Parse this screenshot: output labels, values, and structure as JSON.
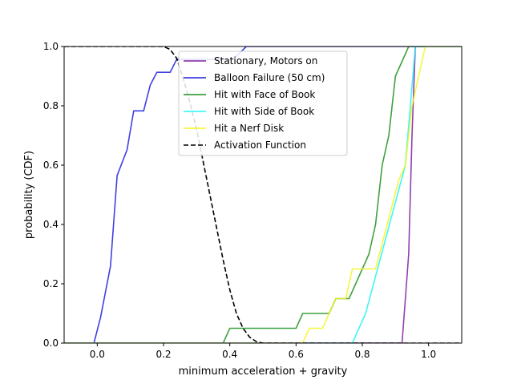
{
  "chart_data": {
    "type": "line",
    "title": "",
    "xlabel": "minimum acceleration + gravity",
    "ylabel": "probability (CDF)",
    "xlim": [
      -0.1,
      1.1
    ],
    "ylim": [
      0.0,
      1.0
    ],
    "xticks": [
      0.0,
      0.2,
      0.4,
      0.6,
      0.8,
      1.0
    ],
    "yticks": [
      0.0,
      0.2,
      0.4,
      0.6,
      0.8,
      1.0
    ],
    "grid": false,
    "legend_position": "upper-center",
    "series": [
      {
        "name": "Stationary, Motors on",
        "color": "#7f1f9f",
        "dash": "solid",
        "x": [
          -0.1,
          0.92,
          0.94,
          0.95,
          0.96,
          1.1
        ],
        "y": [
          0.0,
          0.0,
          0.3,
          0.7,
          1.0,
          1.0
        ]
      },
      {
        "name": "Balloon Failure (50 cm)",
        "color": "#1f1fdf",
        "dash": "solid",
        "x": [
          -0.1,
          -0.01,
          0.01,
          0.04,
          0.06,
          0.09,
          0.11,
          0.14,
          0.16,
          0.18,
          0.22,
          0.24,
          0.26,
          0.31,
          0.36,
          0.41,
          0.45,
          1.1
        ],
        "y": [
          0.0,
          0.0,
          0.087,
          0.26,
          0.565,
          0.652,
          0.783,
          0.783,
          0.87,
          0.913,
          0.913,
          0.957,
          0.957,
          0.957,
          0.957,
          0.957,
          1.0,
          1.0
        ]
      },
      {
        "name": "Hit with Face of Book",
        "color": "#1f8f1f",
        "dash": "solid",
        "x": [
          -0.1,
          0.38,
          0.4,
          0.6,
          0.62,
          0.7,
          0.72,
          0.74,
          0.76,
          0.78,
          0.82,
          0.84,
          0.86,
          0.88,
          0.9,
          0.92,
          0.94,
          1.1
        ],
        "y": [
          0.0,
          0.0,
          0.05,
          0.05,
          0.1,
          0.1,
          0.15,
          0.15,
          0.15,
          0.2,
          0.3,
          0.4,
          0.6,
          0.7,
          0.9,
          0.95,
          1.0,
          1.0
        ]
      },
      {
        "name": "Hit with Side of Book",
        "color": "#1ff5f5",
        "dash": "solid",
        "x": [
          -0.1,
          0.77,
          0.81,
          0.93,
          0.96,
          1.1
        ],
        "y": [
          0.0,
          0.0,
          0.1,
          0.6,
          1.0,
          1.0
        ]
      },
      {
        "name": "Hit a Nerf Disk",
        "color": "#f5f51f",
        "dash": "solid",
        "x": [
          -0.1,
          0.62,
          0.64,
          0.66,
          0.68,
          0.7,
          0.72,
          0.75,
          0.77,
          0.84,
          0.91,
          0.93,
          0.95,
          0.99,
          1.1
        ],
        "y": [
          0.0,
          0.0,
          0.05,
          0.05,
          0.05,
          0.1,
          0.15,
          0.15,
          0.25,
          0.25,
          0.55,
          0.6,
          0.8,
          1.0,
          1.0
        ]
      },
      {
        "name": "Activation Function",
        "color": "#000000",
        "dash": "dashed",
        "x": [
          -0.1,
          0.0,
          0.1,
          0.2,
          0.22,
          0.24,
          0.26,
          0.28,
          0.3,
          0.32,
          0.34,
          0.36,
          0.38,
          0.4,
          0.42,
          0.44,
          0.46,
          0.48,
          0.5,
          0.6,
          0.8,
          1.0,
          1.1
        ],
        "y": [
          1.0,
          1.0,
          1.0,
          1.0,
          0.99,
          0.96,
          0.89,
          0.81,
          0.72,
          0.61,
          0.5,
          0.39,
          0.28,
          0.18,
          0.1,
          0.05,
          0.02,
          0.005,
          0.0,
          0.0,
          0.0,
          0.0,
          0.0
        ]
      }
    ]
  }
}
